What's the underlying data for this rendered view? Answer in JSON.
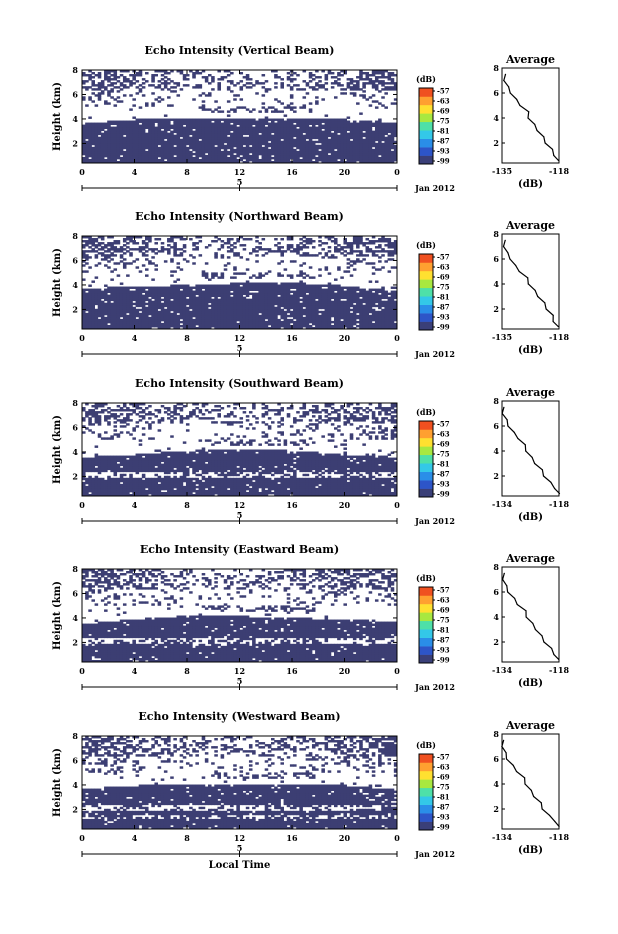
{
  "chart_data": [
    {
      "type": "heatmap",
      "title": "Echo Intensity (Vertical Beam)",
      "ylabel": "Height (km)",
      "x_ticks": [
        "0",
        "4",
        "8",
        "12",
        "16",
        "20",
        "0"
      ],
      "y_ticks": [
        "2",
        "4",
        "6",
        "8"
      ],
      "date_tick": "5",
      "date_label": "Jan 2012",
      "colorbar": {
        "label": "(dB)",
        "ticks": [
          "-57",
          "-63",
          "-69",
          "-75",
          "-81",
          "-87",
          "-93",
          "-99"
        ]
      },
      "profile": {
        "title": "Average",
        "xlabel": "(dB)",
        "x_ticks": [
          "-135",
          "-118"
        ],
        "xlim": [
          -135,
          -118
        ],
        "y_ticks": [
          "2",
          "4",
          "6",
          "8"
        ],
        "ylim": [
          0.4,
          8
        ],
        "height_km": [
          0.6,
          1.0,
          1.5,
          2.0,
          2.5,
          3.0,
          3.5,
          4.0,
          4.5,
          5.0,
          5.5,
          6.0,
          6.5,
          7.0,
          7.5
        ],
        "db": [
          -118.5,
          -119.2,
          -120.3,
          -121.8,
          -122.9,
          -124.2,
          -125.6,
          -126.9,
          -127.4,
          -129.3,
          -131.0,
          -132.2,
          -133.4,
          -134.1,
          -134.3
        ]
      }
    },
    {
      "type": "heatmap",
      "title": "Echo Intensity (Northward Beam)",
      "ylabel": "Height (km)",
      "x_ticks": [
        "0",
        "4",
        "8",
        "12",
        "16",
        "20",
        "0"
      ],
      "y_ticks": [
        "2",
        "4",
        "6",
        "8"
      ],
      "date_tick": "5",
      "date_label": "Jan 2012",
      "colorbar": {
        "label": "(dB)",
        "ticks": [
          "-57",
          "-63",
          "-69",
          "-75",
          "-81",
          "-87",
          "-93",
          "-99"
        ]
      },
      "profile": {
        "title": "Average",
        "xlabel": "(dB)",
        "x_ticks": [
          "-135",
          "-118"
        ],
        "xlim": [
          -135,
          -118
        ],
        "y_ticks": [
          "2",
          "4",
          "6",
          "8"
        ],
        "ylim": [
          0.4,
          8
        ],
        "height_km": [
          0.6,
          1.0,
          1.5,
          2.0,
          2.5,
          3.0,
          3.5,
          4.0,
          4.5,
          5.0,
          5.5,
          6.0,
          6.5,
          7.0,
          7.5
        ],
        "db": [
          -118.6,
          -119.4,
          -120.1,
          -121.5,
          -122.6,
          -124.0,
          -125.5,
          -126.8,
          -127.7,
          -129.5,
          -131.3,
          -132.3,
          -133.6,
          -134.2,
          -134.4
        ]
      }
    },
    {
      "type": "heatmap",
      "title": "Echo Intensity (Southward Beam)",
      "ylabel": "Height (km)",
      "x_ticks": [
        "0",
        "4",
        "8",
        "12",
        "16",
        "20",
        "0"
      ],
      "y_ticks": [
        "2",
        "4",
        "6",
        "8"
      ],
      "date_tick": "5",
      "date_label": "Jan 2012",
      "colorbar": {
        "label": "(dB)",
        "ticks": [
          "-57",
          "-63",
          "-69",
          "-75",
          "-81",
          "-87",
          "-93",
          "-99"
        ]
      },
      "profile": {
        "title": "Average",
        "xlabel": "(dB)",
        "x_ticks": [
          "-134",
          "-118"
        ],
        "xlim": [
          -134,
          -118
        ],
        "y_ticks": [
          "2",
          "4",
          "6",
          "8"
        ],
        "ylim": [
          0.4,
          8
        ],
        "height_km": [
          0.6,
          1.0,
          1.5,
          2.0,
          2.5,
          3.0,
          3.5,
          4.0,
          4.5,
          5.0,
          5.5,
          6.0,
          6.5,
          7.0,
          7.5
        ],
        "db": [
          -118.2,
          -118.9,
          -120.6,
          -122.0,
          -123.0,
          -124.5,
          -125.9,
          -127.0,
          -127.8,
          -129.2,
          -130.9,
          -132.0,
          -132.9,
          -133.6,
          -133.8
        ]
      }
    },
    {
      "type": "heatmap",
      "title": "Echo Intensity (Eastward Beam)",
      "ylabel": "Height (km)",
      "x_ticks": [
        "0",
        "4",
        "8",
        "12",
        "16",
        "20",
        "0"
      ],
      "y_ticks": [
        "2",
        "4",
        "6",
        "8"
      ],
      "date_tick": "5",
      "date_label": "Jan 2012",
      "colorbar": {
        "label": "(dB)",
        "ticks": [
          "-57",
          "-63",
          "-69",
          "-75",
          "-81",
          "-87",
          "-93",
          "-99"
        ]
      },
      "profile": {
        "title": "Average",
        "xlabel": "(dB)",
        "x_ticks": [
          "-134",
          "-118"
        ],
        "xlim": [
          -134,
          -118
        ],
        "y_ticks": [
          "2",
          "4",
          "6",
          "8"
        ],
        "ylim": [
          0.4,
          8
        ],
        "height_km": [
          0.6,
          1.0,
          1.5,
          2.0,
          2.5,
          3.0,
          3.5,
          4.0,
          4.5,
          5.0,
          5.5,
          6.0,
          6.5,
          7.0,
          7.5
        ],
        "db": [
          -118.4,
          -119.1,
          -120.4,
          -121.9,
          -123.1,
          -124.3,
          -125.7,
          -126.9,
          -127.6,
          -129.4,
          -130.8,
          -132.1,
          -133.0,
          -133.5,
          -133.7
        ]
      }
    },
    {
      "type": "heatmap",
      "title": "Echo Intensity (Westward Beam)",
      "ylabel": "Height (km)",
      "xlabel": "Local Time",
      "x_ticks": [
        "0",
        "4",
        "8",
        "12",
        "16",
        "20",
        "0"
      ],
      "y_ticks": [
        "2",
        "4",
        "6",
        "8"
      ],
      "date_tick": "5",
      "date_label": "Jan 2012",
      "colorbar": {
        "label": "(dB)",
        "ticks": [
          "-57",
          "-63",
          "-69",
          "-75",
          "-81",
          "-87",
          "-93",
          "-99"
        ]
      },
      "profile": {
        "title": "Average",
        "xlabel": "(dB)",
        "x_ticks": [
          "-134",
          "-118"
        ],
        "xlim": [
          -134,
          -118
        ],
        "y_ticks": [
          "2",
          "4",
          "6",
          "8"
        ],
        "ylim": [
          0.4,
          8
        ],
        "height_km": [
          0.6,
          1.0,
          1.5,
          2.0,
          2.5,
          3.0,
          3.5,
          4.0,
          4.5,
          5.0,
          5.5,
          6.0,
          6.5,
          7.0,
          7.5
        ],
        "db": [
          -118.3,
          -118.8,
          -121.0,
          -122.4,
          -123.3,
          -124.8,
          -126.1,
          -127.2,
          -128.0,
          -129.6,
          -131.2,
          -132.4,
          -133.2,
          -133.7,
          -133.9
        ]
      }
    }
  ],
  "colors": {
    "echo_fill": "#3c3e73",
    "background": "#ffffff",
    "axis": "#000000",
    "colorbar": [
      "#3a3f78",
      "#2d55c8",
      "#2a8ee8",
      "#33c8e8",
      "#4ee0a8",
      "#a8e840",
      "#ffe030",
      "#ffa030",
      "#f05020"
    ]
  }
}
